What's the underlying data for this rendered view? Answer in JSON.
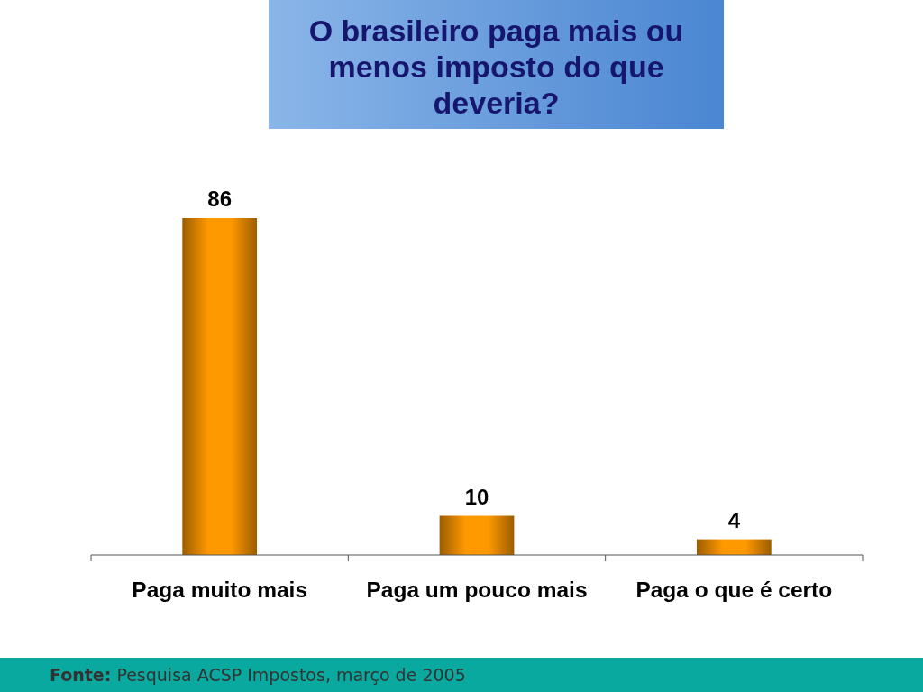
{
  "chart_data": {
    "type": "bar",
    "title": "O brasileiro paga mais ou menos imposto do que deveria?",
    "categories": [
      "Paga muito mais",
      "Paga um pouco mais",
      "Paga o que é certo"
    ],
    "values": [
      86,
      10,
      4
    ],
    "color": "#ff9900",
    "tick_labels": "x",
    "data_labels": true,
    "annotations": [
      "Fonte: Pesquisa ACSP Impostos, março de 2005"
    ]
  }
}
